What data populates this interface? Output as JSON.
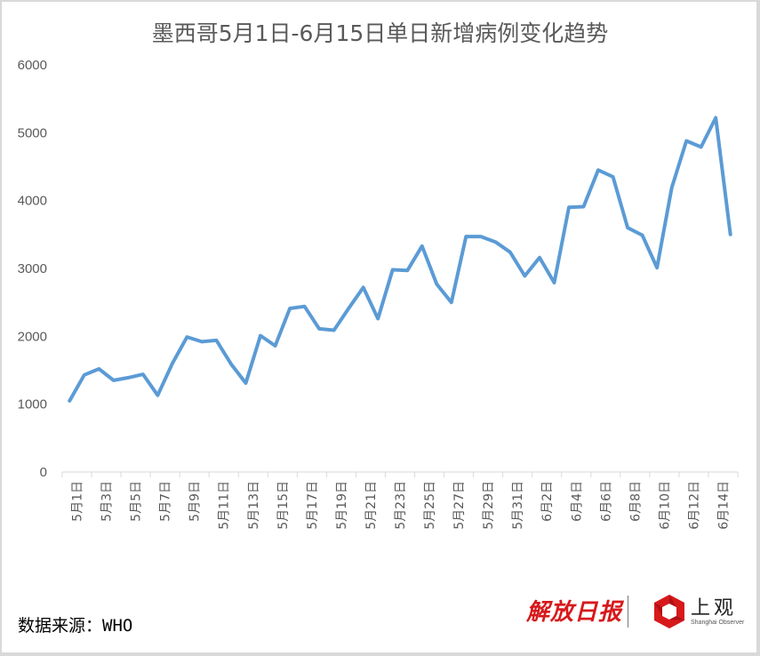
{
  "title": "墨西哥5月1日-6月15日单日新增病例变化趋势",
  "source_label": "数据来源：WHO",
  "logos": {
    "jiefang_daily": "解放日报",
    "shanghai_observer_cn": "上观",
    "shanghai_observer_en": "Shanghai Observer"
  },
  "colors": {
    "line": "#5b9bd5",
    "axis_text": "#595959",
    "axis_line": "#d9d9d9",
    "logo_red": "#d7191c"
  },
  "chart_data": {
    "type": "line",
    "title": "墨西哥5月1日-6月15日单日新增病例变化趋势",
    "xlabel": "",
    "ylabel": "",
    "ylim": [
      0,
      6000
    ],
    "yticks": [
      0,
      1000,
      2000,
      3000,
      4000,
      5000,
      6000
    ],
    "grid": false,
    "legend": "none",
    "x": [
      "5月1日",
      "5月2日",
      "5月3日",
      "5月4日",
      "5月5日",
      "5月6日",
      "5月7日",
      "5月8日",
      "5月9日",
      "5月10日",
      "5月11日",
      "5月12日",
      "5月13日",
      "5月14日",
      "5月15日",
      "5月16日",
      "5月17日",
      "5月18日",
      "5月19日",
      "5月20日",
      "5月21日",
      "5月22日",
      "5月23日",
      "5月24日",
      "5月25日",
      "5月26日",
      "5月27日",
      "5月28日",
      "5月29日",
      "5月30日",
      "5月31日",
      "6月1日",
      "6月2日",
      "6月3日",
      "6月4日",
      "6月5日",
      "6月6日",
      "6月7日",
      "6月8日",
      "6月9日",
      "6月10日",
      "6月11日",
      "6月12日",
      "6月13日",
      "6月14日",
      "6月15日"
    ],
    "x_tick_labels_shown": [
      "5月1日",
      "5月3日",
      "5月5日",
      "5月7日",
      "5月9日",
      "5月11日",
      "5月13日",
      "5月15日",
      "5月17日",
      "5月19日",
      "5月21日",
      "5月23日",
      "5月25日",
      "5月27日",
      "5月29日",
      "5月31日",
      "6月2日",
      "6月4日",
      "6月6日",
      "6月8日",
      "6月10日",
      "6月12日",
      "6月14日"
    ],
    "series": [
      {
        "name": "单日新增病例",
        "values": [
          1050,
          1430,
          1520,
          1350,
          1390,
          1440,
          1130,
          1600,
          1990,
          1920,
          1940,
          1590,
          1310,
          2010,
          1860,
          2410,
          2440,
          2110,
          2090,
          2410,
          2720,
          2260,
          2980,
          2970,
          3330,
          2770,
          2500,
          3470,
          3470,
          3390,
          3240,
          2890,
          3160,
          2790,
          3900,
          3910,
          4450,
          4350,
          3600,
          3490,
          3010,
          4190,
          4880,
          4790,
          5220,
          3500
        ]
      }
    ]
  }
}
